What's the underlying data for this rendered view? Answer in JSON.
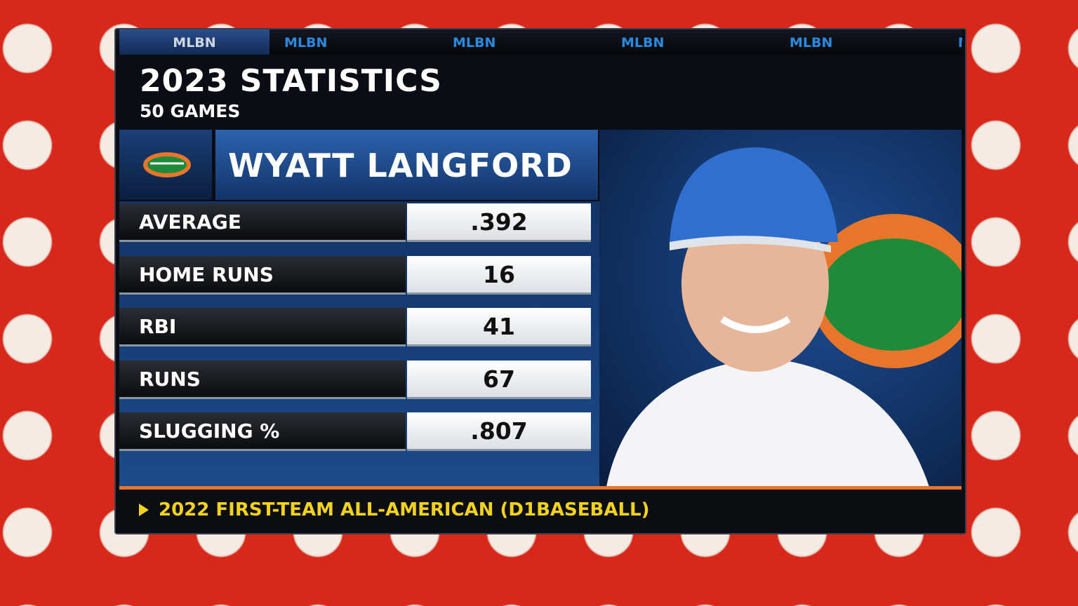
{
  "ticker": [
    "MLBN",
    "MLBN",
    "MLBN",
    "MLBN",
    "MLBN",
    "MLBN"
  ],
  "header": {
    "title": "2023 STATISTICS",
    "subtitle": "50 GAMES"
  },
  "player": {
    "name": "WYATT LANGFORD"
  },
  "stats": [
    {
      "label": "AVERAGE",
      "value": ".392"
    },
    {
      "label": "HOME RUNS",
      "value": "16"
    },
    {
      "label": "RBI",
      "value": "41"
    },
    {
      "label": "RUNS",
      "value": "67"
    },
    {
      "label": "SLUGGING %",
      "value": ".807"
    }
  ],
  "footer": {
    "note": "2022 FIRST-TEAM ALL-AMERICAN (D1BASEBALL)"
  }
}
